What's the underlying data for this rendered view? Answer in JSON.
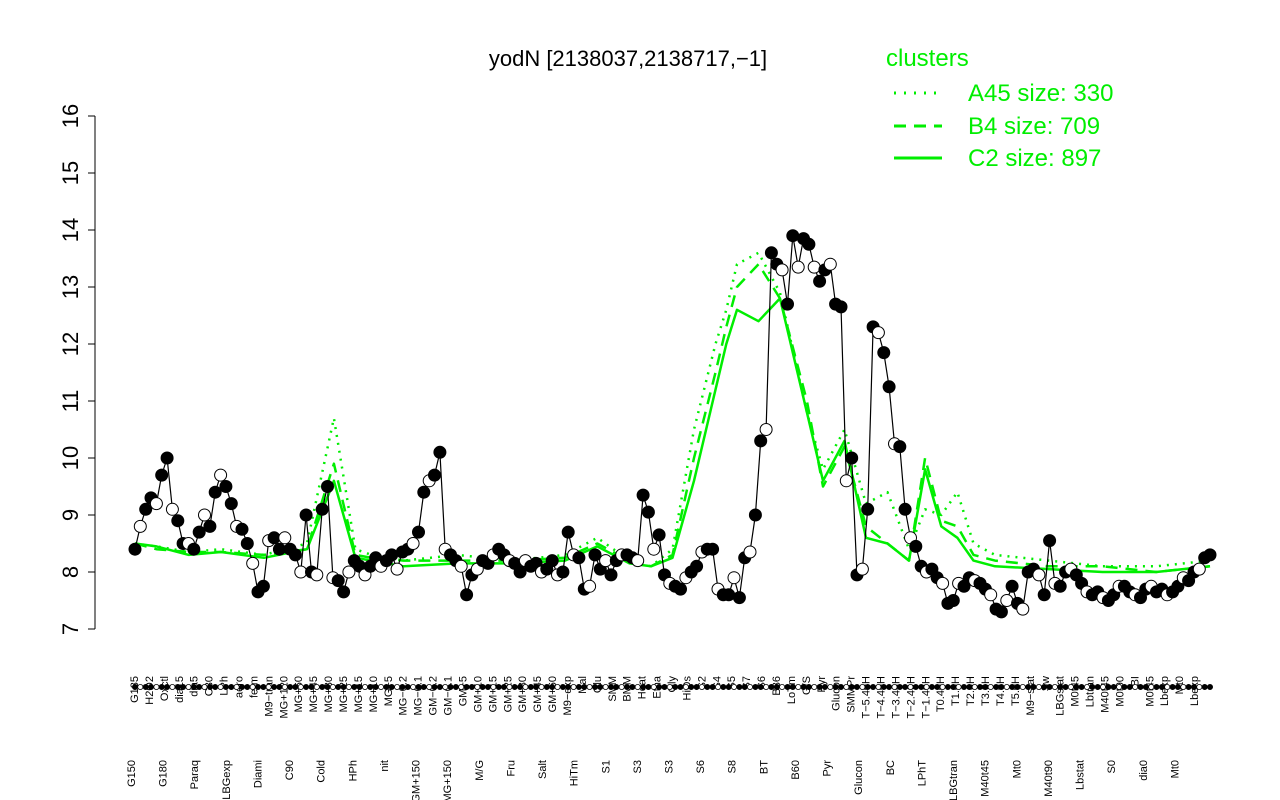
{
  "chart_data": {
    "type": "line",
    "title": "yodN [2138037,2138717,−1]",
    "xlabel": "",
    "ylabel": "",
    "ylim": [
      7,
      16
    ],
    "yticks": [
      7,
      8,
      9,
      10,
      11,
      12,
      13,
      14,
      15,
      16
    ],
    "legend": {
      "title": "clusters",
      "position": "top-right",
      "entries": [
        {
          "label": "A45 size: 330",
          "style": "dotted"
        },
        {
          "label": "B4 size: 709",
          "style": "dashed"
        },
        {
          "label": "C2 size: 897",
          "style": "solid"
        }
      ]
    },
    "colors": {
      "cluster": "#00ee00",
      "series": "#000000"
    },
    "x_labels_top": [
      "G135",
      "H2O2",
      "Oxctl",
      "dia15",
      "dia5",
      "C30",
      "LPh",
      "aero",
      "ferm",
      "M9−tran",
      "MG+120",
      "MG+60",
      "MG+45",
      "MG+30",
      "MG+25",
      "MG+15",
      "MG+10",
      "MG+5",
      "MG−0.2",
      "MG−0.1",
      "GM−0.2",
      "GM−0.1",
      "GM+5",
      "GM+10",
      "GM+15",
      "GM+25",
      "GM+30",
      "GM+45",
      "GM+60",
      "M9−exp",
      "Mal",
      "Glu",
      "SMM",
      "BMM",
      "Heat",
      "Etha",
      "Gly",
      "HiOs",
      "S2",
      "S4",
      "S5",
      "S7",
      "S6",
      "B36",
      "LoTm",
      "G/S",
      "Pyr",
      "Glucon",
      "SMMPr",
      "T−5.40H",
      "T−4.40H",
      "T−3.40H",
      "T−2.40H",
      "T−1.40H",
      "T0.40H",
      "T1.0H",
      "T2.0H",
      "T3.0H",
      "T4.0H",
      "T5.0H",
      "M9−stat",
      "Sw",
      "LBGstat",
      "M0t45",
      "Lbtran",
      "M40t45",
      "M0t90",
      "BI",
      "M0t45",
      "Lbexp",
      "Mt0",
      "Lbexp"
    ],
    "x_labels_bottom": [
      "G150",
      "G180",
      "Paraq",
      "LBGexp",
      "Diami",
      "C90",
      "Cold",
      "HPh",
      "nit",
      "GM+150",
      "MG+150",
      "M/G",
      "Fru",
      "Salt",
      "HiTm",
      "S1",
      "S3",
      "S3",
      "S6",
      "S8",
      "BT",
      "B60",
      "Pyr",
      "Glucon",
      "BC",
      "LPhT",
      "LBGtran",
      "M40t45",
      "Mt0",
      "M40t90",
      "Lbstat",
      "S0",
      "dia0",
      "Mt0"
    ],
    "series": [
      {
        "name": "",
        "values": [
          8.4,
          8.8,
          9.1,
          9.3,
          9.2,
          9.7,
          10.0,
          9.1,
          8.9,
          8.5,
          8.5,
          8.4,
          8.7,
          9.0,
          8.8,
          9.4,
          9.7,
          9.5,
          9.2,
          8.8,
          8.75,
          8.5,
          8.15,
          7.65,
          7.75,
          8.55,
          8.6,
          8.4,
          8.6,
          8.4,
          8.3,
          8.0,
          9.0,
          8.0,
          7.95,
          9.1,
          9.5,
          7.9,
          7.85,
          7.65,
          8.0,
          8.2,
          8.1,
          7.95,
          8.1,
          8.25,
          8.1,
          8.2,
          8.3,
          8.05,
          8.35,
          8.4,
          8.5,
          8.7,
          9.4,
          9.6,
          9.7,
          10.1,
          8.4,
          8.3,
          8.2,
          8.1,
          7.6,
          7.95,
          8.05,
          8.2,
          8.15,
          8.3,
          8.4,
          8.3,
          8.2,
          8.15,
          8.0,
          8.2,
          8.1,
          8.15,
          8.0,
          8.05,
          8.2,
          7.95,
          8.0,
          8.7,
          8.3,
          8.25,
          7.7,
          7.75,
          8.3,
          8.05,
          8.2,
          7.95,
          8.2,
          8.3,
          8.3,
          8.25,
          8.2,
          9.35,
          9.05,
          8.4,
          8.65,
          7.95,
          7.8,
          7.75,
          7.7,
          7.9,
          8.0,
          8.1,
          8.35,
          8.4,
          8.4,
          7.7,
          7.6,
          7.6,
          7.9,
          7.55,
          8.25,
          8.35,
          9.0,
          10.3,
          10.5,
          13.6,
          13.4,
          13.3,
          12.7,
          13.9,
          13.35,
          13.85,
          13.75,
          13.35,
          13.1,
          13.3,
          13.4,
          12.7,
          12.65,
          9.6,
          10.0,
          7.95,
          8.05,
          9.1,
          12.3,
          12.2,
          11.85,
          11.25,
          10.25,
          10.2,
          9.1,
          8.6,
          8.45,
          8.1,
          8.0,
          8.05,
          7.9,
          7.8,
          7.45,
          7.5,
          7.8,
          7.75,
          7.9,
          7.85,
          7.8,
          7.7,
          7.6,
          7.35,
          7.3,
          7.5,
          7.75,
          7.45,
          7.35,
          8.0,
          8.05,
          7.95,
          7.6,
          8.55,
          7.8,
          7.75,
          8.0,
          8.05,
          7.95,
          7.8,
          7.65,
          7.6,
          7.65,
          7.55,
          7.5,
          7.6,
          7.75,
          7.75,
          7.65,
          7.6,
          7.55,
          7.7,
          7.75,
          7.65,
          7.7,
          7.6,
          7.65,
          7.75,
          7.9,
          7.85,
          8.0,
          8.05,
          8.25,
          8.3
        ]
      }
    ],
    "cluster_lines": [
      {
        "name": "A45 size: 330",
        "style": "dotted",
        "x_frac": [
          0.0,
          0.02,
          0.05,
          0.08,
          0.12,
          0.16,
          0.185,
          0.205,
          0.22,
          0.25,
          0.3,
          0.35,
          0.4,
          0.43,
          0.46,
          0.48,
          0.5,
          0.52,
          0.54,
          0.55,
          0.56,
          0.58,
          0.6,
          0.625,
          0.64,
          0.66,
          0.68,
          0.7,
          0.72,
          0.735,
          0.75,
          0.765,
          0.78,
          0.8,
          0.85,
          0.9,
          0.95,
          1.0
        ],
        "values": [
          8.5,
          8.45,
          8.35,
          8.4,
          8.3,
          8.5,
          10.7,
          8.4,
          8.3,
          8.2,
          8.3,
          8.2,
          8.3,
          8.6,
          8.2,
          8.1,
          8.4,
          10.5,
          12.0,
          12.6,
          13.4,
          13.6,
          12.9,
          10.8,
          9.8,
          10.5,
          9.2,
          9.4,
          8.4,
          9.1,
          9.0,
          9.4,
          8.5,
          8.3,
          8.2,
          8.1,
          8.1,
          8.2
        ]
      },
      {
        "name": "B4 size: 709",
        "style": "dashed",
        "x_frac": [
          0.0,
          0.02,
          0.05,
          0.08,
          0.12,
          0.16,
          0.185,
          0.205,
          0.22,
          0.25,
          0.3,
          0.35,
          0.4,
          0.43,
          0.46,
          0.48,
          0.5,
          0.52,
          0.54,
          0.55,
          0.56,
          0.58,
          0.6,
          0.625,
          0.64,
          0.66,
          0.68,
          0.7,
          0.72,
          0.735,
          0.75,
          0.765,
          0.78,
          0.8,
          0.85,
          0.9,
          0.95,
          1.0
        ],
        "values": [
          8.5,
          8.4,
          8.35,
          8.35,
          8.3,
          8.4,
          9.9,
          8.3,
          8.25,
          8.2,
          8.2,
          8.2,
          8.25,
          8.5,
          8.2,
          8.1,
          8.3,
          10.0,
          11.5,
          12.3,
          13.0,
          13.4,
          12.8,
          11.0,
          9.5,
          10.2,
          8.8,
          8.5,
          8.2,
          10.0,
          8.9,
          8.8,
          8.3,
          8.2,
          8.1,
          8.1,
          8.0,
          8.1
        ]
      },
      {
        "name": "C2 size: 897",
        "style": "solid",
        "x_frac": [
          0.0,
          0.02,
          0.05,
          0.08,
          0.12,
          0.16,
          0.185,
          0.205,
          0.22,
          0.25,
          0.3,
          0.35,
          0.4,
          0.43,
          0.46,
          0.48,
          0.5,
          0.52,
          0.54,
          0.55,
          0.56,
          0.58,
          0.6,
          0.625,
          0.64,
          0.66,
          0.68,
          0.7,
          0.72,
          0.735,
          0.75,
          0.765,
          0.78,
          0.8,
          0.85,
          0.9,
          0.95,
          1.0
        ],
        "values": [
          8.5,
          8.45,
          8.3,
          8.35,
          8.25,
          8.4,
          9.6,
          8.25,
          8.2,
          8.1,
          8.15,
          8.15,
          8.2,
          8.45,
          8.15,
          8.1,
          8.25,
          9.6,
          11.2,
          12.0,
          12.6,
          12.4,
          12.8,
          10.8,
          9.6,
          10.3,
          8.6,
          8.5,
          8.2,
          9.8,
          8.8,
          8.6,
          8.2,
          8.1,
          8.05,
          8.0,
          8.0,
          8.1
        ]
      }
    ]
  }
}
